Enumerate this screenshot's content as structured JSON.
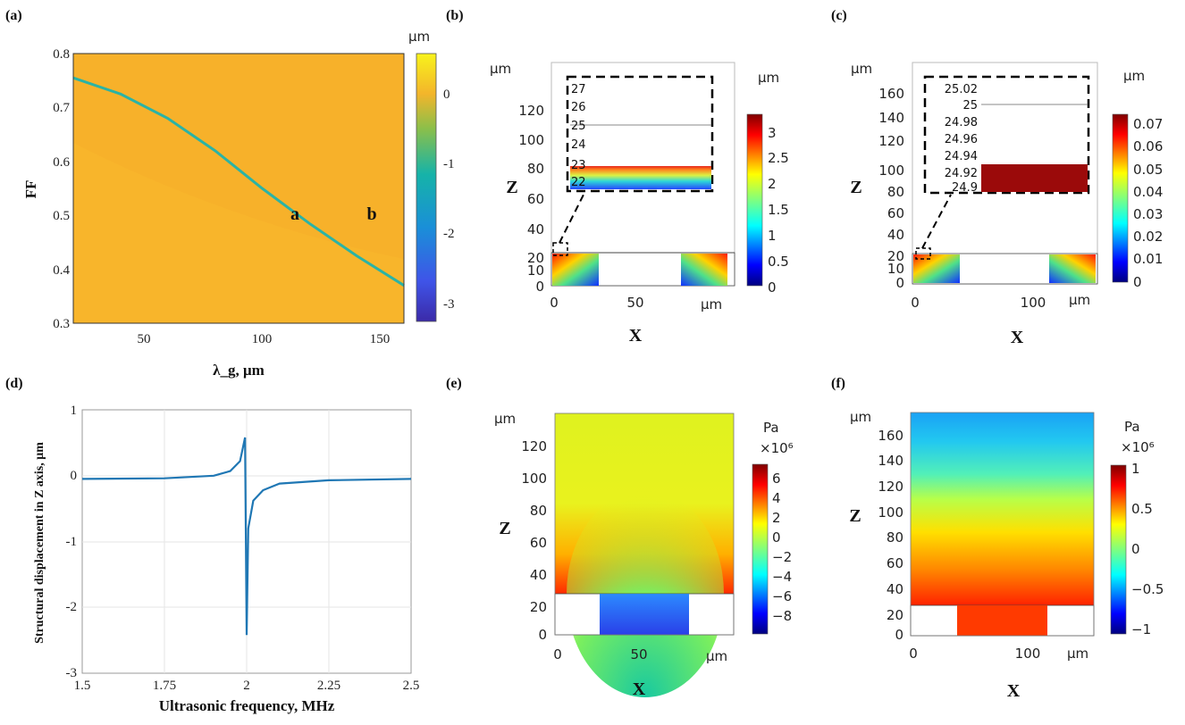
{
  "colors": {
    "orange": "#f7b12a",
    "cyan": "#2bb3a5",
    "blue": "#1f77b4",
    "darkred": "#9b0a0a"
  },
  "chart_data": [
    {
      "id": "a",
      "panel_label": "(a)",
      "type": "heatmap",
      "xlabel": "λ_g, μm",
      "ylabel": "FF",
      "colorbar_unit": "μm",
      "xlim": [
        20,
        160
      ],
      "ylim": [
        0.3,
        0.8
      ],
      "x_ticks": [
        "50",
        "100",
        "150"
      ],
      "y_ticks": [
        "0.3",
        "0.4",
        "0.5",
        "0.6",
        "0.7",
        "0.8"
      ],
      "colorbar_ticks": [
        "0",
        "-1",
        "-2",
        "-3"
      ],
      "colorbar_range": [
        -3.3,
        0.7
      ],
      "resonance_curve": {
        "x": [
          20,
          40,
          60,
          80,
          100,
          120,
          140,
          160
        ],
        "y": [
          0.755,
          0.725,
          0.68,
          0.62,
          0.55,
          0.485,
          0.425,
          0.37
        ]
      },
      "annotations": [
        {
          "text": "a",
          "x": 112,
          "y": 0.5
        },
        {
          "text": "b",
          "x": 145,
          "y": 0.5
        }
      ]
    },
    {
      "id": "b",
      "panel_label": "(b)",
      "type": "heatmap",
      "xlabel": "X",
      "ylabel": "Z",
      "x_unit": "μm",
      "y_unit": "μm",
      "colorbar_unit": "μm",
      "xlim": [
        -2,
        108
      ],
      "ylim": [
        -3,
        147
      ],
      "x_ticks": [
        "0",
        "50"
      ],
      "y_ticks": [
        "0",
        "10",
        "20",
        "40",
        "60",
        "80",
        "100",
        "120"
      ],
      "colorbar_ticks": [
        "0",
        "0.5",
        "1",
        "1.5",
        "2",
        "2.5",
        "3"
      ],
      "colorbar_range": [
        0,
        3.3
      ],
      "inset_ticks": [
        "27",
        "26",
        "25",
        "24",
        "23",
        "22"
      ]
    },
    {
      "id": "c",
      "panel_label": "(c)",
      "type": "heatmap",
      "xlabel": "X",
      "ylabel": "Z",
      "x_unit": "μm",
      "y_unit": "μm",
      "colorbar_unit": "μm",
      "xlim": [
        -3,
        158
      ],
      "ylim": [
        -3,
        178
      ],
      "x_ticks": [
        "0",
        "100"
      ],
      "y_ticks": [
        "0",
        "10",
        "20",
        "40",
        "60",
        "80",
        "100",
        "120",
        "140",
        "160"
      ],
      "colorbar_ticks": [
        "0",
        "0.01",
        "0.02",
        "0.03",
        "0.04",
        "0.05",
        "0.06",
        "0.07"
      ],
      "colorbar_range": [
        0,
        0.074
      ],
      "inset_ticks": [
        "25.02",
        "25",
        "24.98",
        "24.96",
        "24.94",
        "24.92",
        "24.9"
      ]
    },
    {
      "id": "d",
      "panel_label": "(d)",
      "type": "line",
      "xlabel": "Ultrasonic frequency, MHz",
      "ylabel": "Structural displacement in Z axis, μm",
      "xlim": [
        1.5,
        2.5
      ],
      "ylim": [
        -3,
        1
      ],
      "x_ticks": [
        "1.5",
        "1.75",
        "2",
        "2.25",
        "2.5"
      ],
      "y_ticks": [
        "1",
        "0",
        "-1",
        "-2",
        "-3"
      ],
      "series": [
        {
          "name": "displacement",
          "x": [
            1.5,
            1.75,
            1.9,
            1.95,
            1.98,
            1.995,
            2.0,
            2.005,
            2.02,
            2.05,
            2.1,
            2.25,
            2.5
          ],
          "y": [
            -0.05,
            -0.04,
            0.0,
            0.07,
            0.22,
            0.58,
            -2.42,
            -0.8,
            -0.38,
            -0.22,
            -0.12,
            -0.07,
            -0.05
          ]
        }
      ]
    },
    {
      "id": "e",
      "panel_label": "(e)",
      "type": "heatmap",
      "xlabel": "X",
      "ylabel": "Z",
      "x_unit": "μm",
      "y_unit": "μm",
      "colorbar_unit": "Pa",
      "colorbar_scale": "×10⁶",
      "xlim": [
        -2,
        108
      ],
      "ylim": [
        -3,
        137
      ],
      "x_ticks": [
        "0",
        "50"
      ],
      "y_ticks": [
        "0",
        "20",
        "40",
        "60",
        "80",
        "100",
        "120"
      ],
      "colorbar_ticks": [
        "6",
        "4",
        "2",
        "0",
        "−2",
        "−4",
        "−6",
        "−8"
      ],
      "colorbar_range": [
        -9.5,
        7.5
      ]
    },
    {
      "id": "f",
      "panel_label": "(f)",
      "type": "heatmap",
      "xlabel": "X",
      "ylabel": "Z",
      "x_unit": "μm",
      "y_unit": "μm",
      "colorbar_unit": "Pa",
      "colorbar_scale": "×10⁶",
      "xlim": [
        -3,
        158
      ],
      "ylim": [
        -3,
        178
      ],
      "x_ticks": [
        "0",
        "100"
      ],
      "y_ticks": [
        "0",
        "20",
        "40",
        "60",
        "80",
        "100",
        "120",
        "140",
        "160"
      ],
      "colorbar_ticks": [
        "1",
        "0.5",
        "0",
        "−0.5",
        "−1"
      ],
      "colorbar_range": [
        -1,
        1
      ]
    }
  ]
}
